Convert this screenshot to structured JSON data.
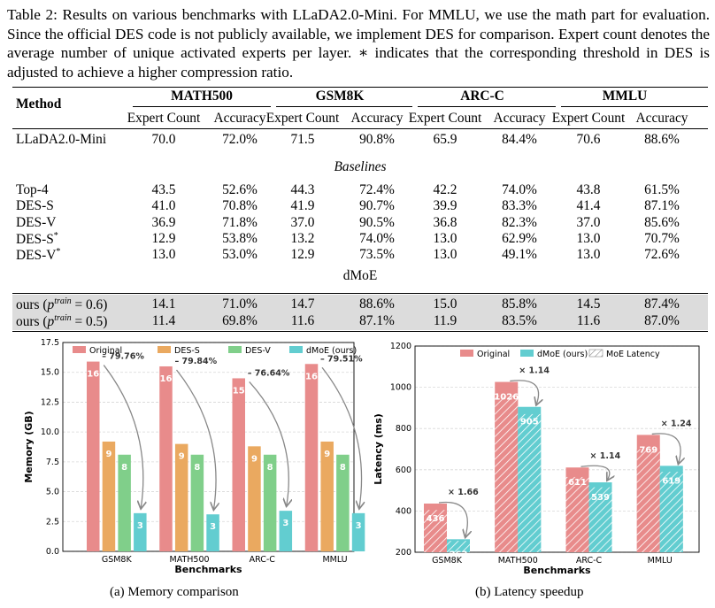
{
  "caption": "Table 2: Results on various benchmarks with LLaDA2.0-Mini. For MMLU, we use the math part for evaluation. Since the official DES code is not publicly available, we implement DES for comparison. Expert count denotes the average number of unique activated experts per layer. ∗ indicates that the corresponding threshold in DES is adjusted to achieve a higher compression ratio.",
  "table": {
    "method_header": "Method",
    "groups": [
      "MATH500",
      "GSM8K",
      "ARC-C",
      "MMLU"
    ],
    "subheaders": [
      "Expert Count",
      "Accuracy"
    ],
    "base_row": {
      "method": "LLaDA2.0-Mini",
      "values": [
        "70.0",
        "72.0%",
        "71.5",
        "90.8%",
        "65.9",
        "84.4%",
        "70.6",
        "88.6%"
      ]
    },
    "baselines_label": "Baselines",
    "baselines": [
      {
        "method": "Top-4",
        "values": [
          "43.5",
          "52.6%",
          "44.3",
          "72.4%",
          "42.2",
          "74.0%",
          "43.8",
          "61.5%"
        ]
      },
      {
        "method": "DES-S",
        "values": [
          "41.0",
          "70.8%",
          "41.9",
          "90.7%",
          "39.9",
          "83.3%",
          "41.4",
          "87.1%"
        ]
      },
      {
        "method": "DES-V",
        "values": [
          "36.9",
          "71.8%",
          "37.0",
          "90.5%",
          "36.8",
          "82.3%",
          "37.0",
          "85.6%"
        ]
      },
      {
        "method": "DES-S*",
        "values": [
          "12.9",
          "53.8%",
          "13.2",
          "74.0%",
          "13.0",
          "62.9%",
          "13.0",
          "70.7%"
        ]
      },
      {
        "method": "DES-V*",
        "values": [
          "13.0",
          "53.0%",
          "12.9",
          "73.5%",
          "13.0",
          "49.1%",
          "13.0",
          "72.6%"
        ]
      }
    ],
    "dmoe_label": "dMoE",
    "ours": [
      {
        "method_prefix": "ours (",
        "p": "p",
        "sup": "train",
        "eq": " = 0.6)",
        "values": [
          "14.1",
          "71.0%",
          "14.7",
          "88.6%",
          "15.0",
          "85.8%",
          "14.5",
          "87.4%"
        ]
      },
      {
        "method_prefix": "ours (",
        "p": "p",
        "sup": "train",
        "eq": " = 0.5)",
        "values": [
          "11.4",
          "69.8%",
          "11.6",
          "87.1%",
          "11.9",
          "83.5%",
          "11.6",
          "87.0%"
        ]
      }
    ]
  },
  "chart_data": [
    {
      "type": "bar",
      "ylabel": "Memory (GB)",
      "xlabel": "Benchmarks",
      "categories": [
        "GSM8K",
        "MATH500",
        "ARC-C",
        "MMLU"
      ],
      "ylim": [
        0,
        17.5
      ],
      "yticks": [
        "0.0",
        "2.5",
        "5.0",
        "7.5",
        "10.0",
        "12.5",
        "15.0",
        "17.5"
      ],
      "grid": true,
      "legend_position": "top",
      "series": [
        {
          "name": "Original",
          "color": "#e88b8b",
          "values": [
            15.9,
            15.5,
            14.5,
            15.7
          ],
          "labels": [
            "16",
            "16",
            "15",
            "16"
          ]
        },
        {
          "name": "DES-S",
          "color": "#eaa960",
          "values": [
            9.2,
            9.0,
            8.8,
            9.2
          ],
          "labels": [
            "9",
            "9",
            "9",
            "9"
          ]
        },
        {
          "name": "DES-V",
          "color": "#80cf8a",
          "values": [
            8.1,
            8.1,
            8.1,
            8.1
          ],
          "labels": [
            "8",
            "8",
            "8",
            "8"
          ]
        },
        {
          "name": "dMoE (ours)",
          "color": "#62cdd0",
          "values": [
            3.2,
            3.1,
            3.4,
            3.2
          ],
          "labels": [
            "3",
            "3",
            "3",
            "3"
          ]
        }
      ],
      "annotations": [
        "– 79.76%",
        "– 79.84%",
        "– 76.64%",
        "– 79.51%"
      ],
      "caption": "(a) Memory comparison"
    },
    {
      "type": "bar",
      "ylabel": "Latency (ms)",
      "xlabel": "Benchmarks",
      "categories": [
        "GSM8K",
        "MATH500",
        "ARC-C",
        "MMLU"
      ],
      "ylim": [
        200,
        1200
      ],
      "yticks": [
        "200",
        "400",
        "600",
        "800",
        "1000",
        "1200"
      ],
      "grid": true,
      "legend_position": "top",
      "series": [
        {
          "name": "Original",
          "color": "#e88b8b",
          "values": [
            436,
            1026,
            611,
            769
          ],
          "labels": [
            "436",
            "1026",
            "611",
            "769"
          ]
        },
        {
          "name": "dMoE (ours)",
          "color": "#62cdd0",
          "values": [
            263,
            905,
            539,
            619
          ],
          "labels": [
            "263",
            "905",
            "539",
            "619"
          ]
        }
      ],
      "moe_latency": {
        "name": "MoE Latency",
        "original": [
          405,
          960,
          565,
          700
        ],
        "ours": [
          255,
          870,
          515,
          590
        ]
      },
      "annotations": [
        "× 1.66",
        "× 1.14",
        "× 1.14",
        "× 1.24"
      ],
      "caption": "(b) Latency speedup"
    }
  ]
}
